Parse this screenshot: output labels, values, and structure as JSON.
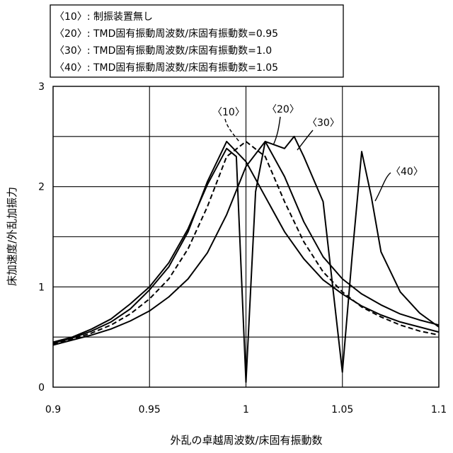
{
  "chart_data": {
    "type": "line",
    "xlabel": "外乱の卓越周波数/床固有振動数",
    "ylabel": "床加速度/外乱加振力",
    "xlim": [
      0.9,
      1.1
    ],
    "ylim": [
      0,
      3
    ],
    "x_ticks": [
      0.9,
      0.95,
      1.0,
      1.05,
      1.1
    ],
    "x_tick_labels": [
      "0.9",
      "0.95",
      "1",
      "1.05",
      "1.1"
    ],
    "y_ticks": [
      0,
      1,
      2,
      3
    ],
    "y_tick_labels": [
      "0",
      "1",
      "2",
      "3"
    ],
    "grid": true,
    "legend": {
      "placement": "top-left",
      "entries": [
        "〈10〉: 制振装置無し",
        "〈20〉: TMD固有振動周波数/床固有振動数=0.95",
        "〈30〉: TMD固有振動周波数/床固有振動数=1.0",
        "〈40〉: TMD固有振動周波数/床固有振動数=1.05"
      ]
    },
    "series": [
      {
        "name": "〈10〉",
        "style": "dashed",
        "x": [
          0.9,
          0.91,
          0.92,
          0.93,
          0.94,
          0.95,
          0.96,
          0.97,
          0.98,
          0.99,
          1.0,
          1.01,
          1.02,
          1.03,
          1.04,
          1.05,
          1.06,
          1.07,
          1.08,
          1.09,
          1.1
        ],
        "y": [
          0.43,
          0.48,
          0.54,
          0.62,
          0.73,
          0.88,
          1.08,
          1.38,
          1.8,
          2.3,
          2.45,
          2.3,
          1.85,
          1.45,
          1.15,
          0.95,
          0.8,
          0.7,
          0.62,
          0.56,
          0.52
        ]
      },
      {
        "name": "〈20〉",
        "style": "solid",
        "x": [
          0.9,
          0.91,
          0.92,
          0.93,
          0.94,
          0.95,
          0.96,
          0.97,
          0.98,
          0.99,
          1.0,
          1.01,
          1.02,
          1.03,
          1.04,
          1.05,
          1.06,
          1.07,
          1.08,
          1.09,
          1.1
        ],
        "y": [
          0.44,
          0.49,
          0.56,
          0.65,
          0.78,
          0.97,
          1.2,
          1.55,
          2.05,
          2.45,
          2.25,
          1.9,
          1.55,
          1.28,
          1.07,
          0.93,
          0.81,
          0.72,
          0.65,
          0.6,
          0.55
        ]
      },
      {
        "name": "〈30〉",
        "style": "solid",
        "x": [
          0.9,
          0.91,
          0.92,
          0.93,
          0.94,
          0.95,
          0.96,
          0.97,
          0.98,
          0.99,
          0.995,
          1.0,
          1.005,
          1.01,
          1.02,
          1.03,
          1.04,
          1.05,
          1.06,
          1.07,
          1.08,
          1.09,
          1.1
        ],
        "y": [
          0.45,
          0.5,
          0.58,
          0.68,
          0.83,
          1.0,
          1.24,
          1.58,
          2.02,
          2.38,
          2.3,
          0.05,
          1.95,
          2.45,
          2.1,
          1.65,
          1.3,
          1.08,
          0.93,
          0.82,
          0.73,
          0.67,
          0.62
        ]
      },
      {
        "name": "〈40〉",
        "style": "solid",
        "x": [
          0.9,
          0.91,
          0.92,
          0.93,
          0.94,
          0.95,
          0.96,
          0.97,
          0.98,
          0.99,
          1.0,
          1.01,
          1.02,
          1.025,
          1.03,
          1.04,
          1.05,
          1.055,
          1.06,
          1.065,
          1.07,
          1.08,
          1.09,
          1.1
        ],
        "y": [
          0.42,
          0.47,
          0.52,
          0.58,
          0.66,
          0.76,
          0.9,
          1.08,
          1.34,
          1.72,
          2.2,
          2.45,
          2.38,
          2.5,
          2.3,
          1.85,
          0.15,
          1.3,
          2.35,
          1.9,
          1.35,
          0.95,
          0.74,
          0.6
        ]
      }
    ],
    "annotations": [
      "〈10〉",
      "〈20〉",
      "〈30〉",
      "〈40〉"
    ]
  }
}
